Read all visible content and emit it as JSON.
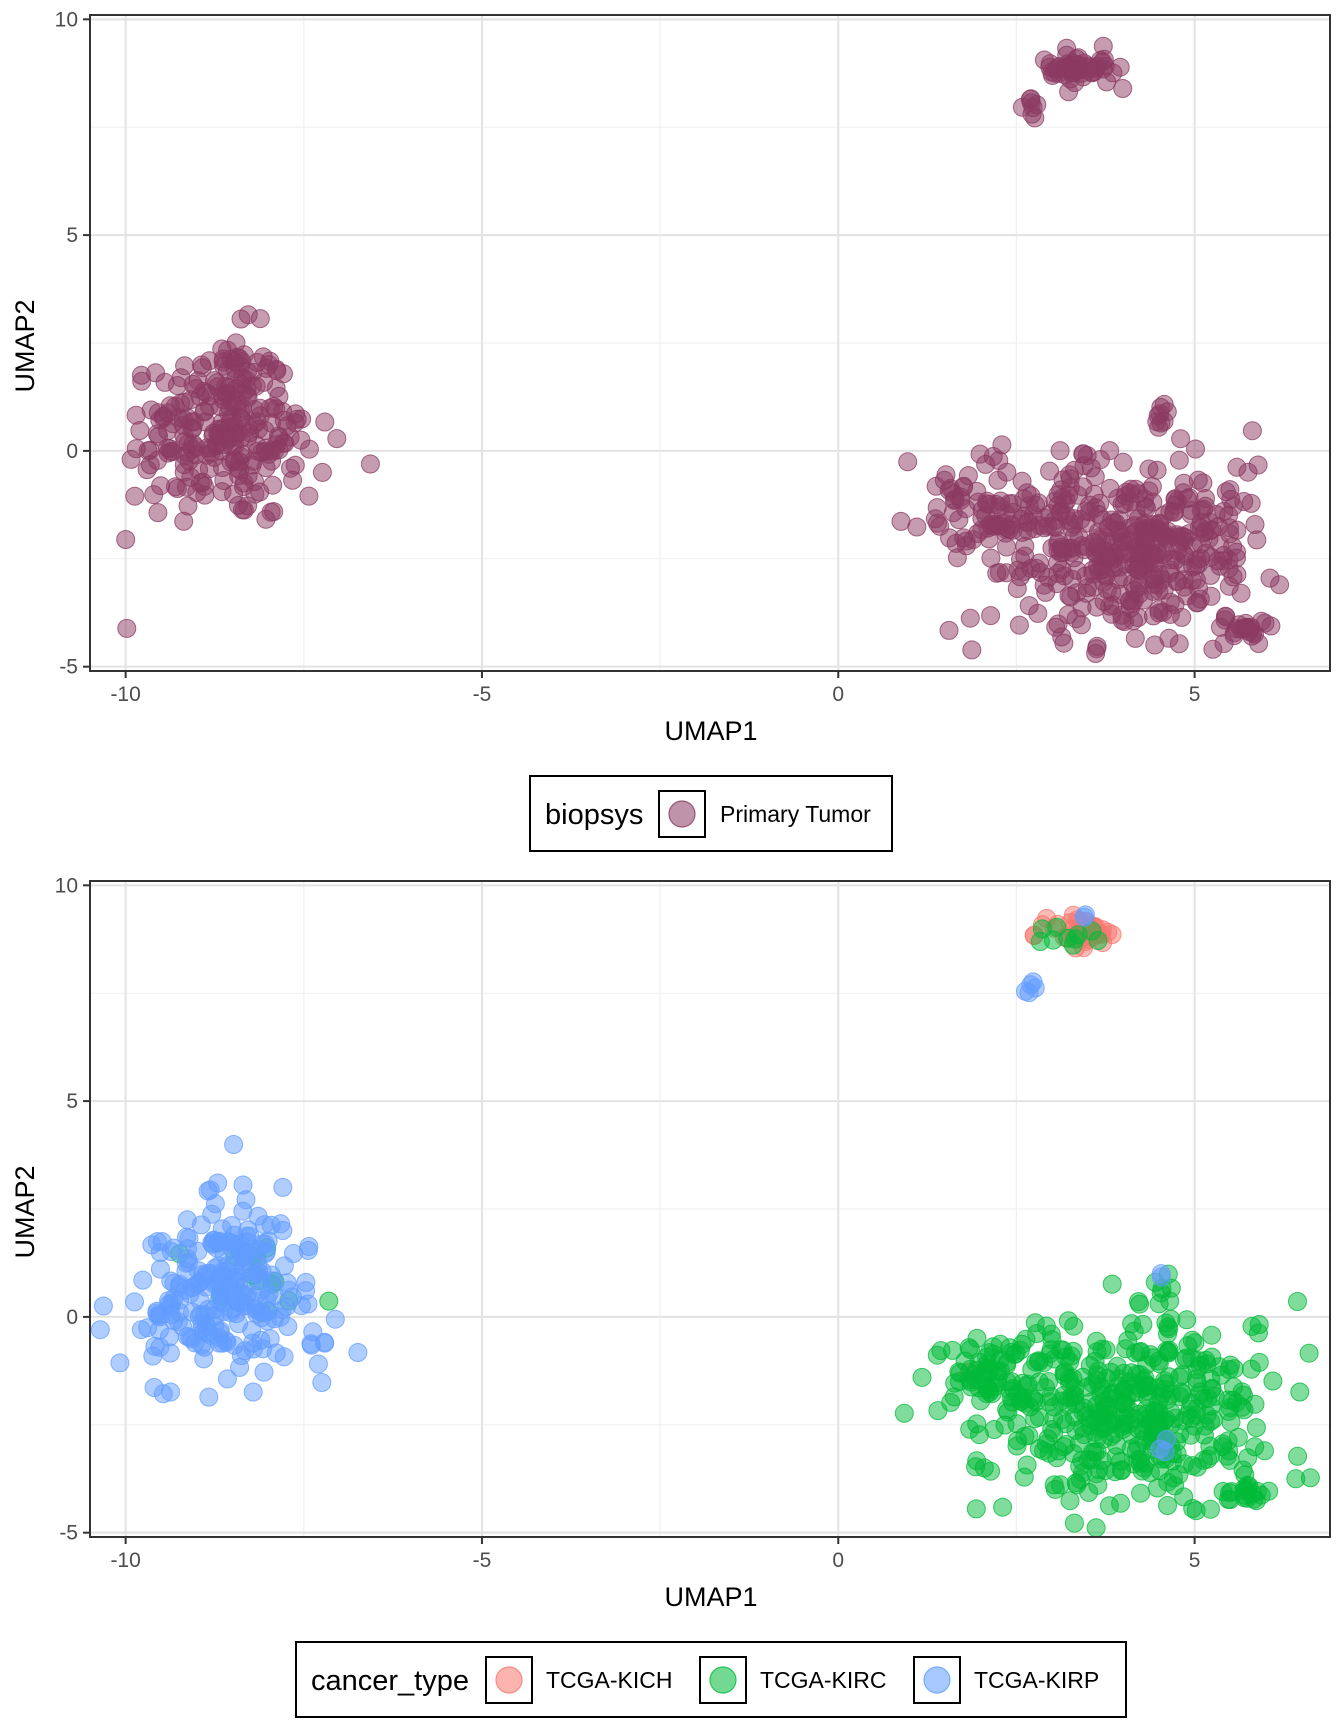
{
  "chart_data": [
    {
      "type": "scatter",
      "title": "",
      "xlabel": "UMAP1",
      "ylabel": "UMAP2",
      "xlim": [
        -10.5,
        6.9
      ],
      "ylim": [
        -5.1,
        10.1
      ],
      "xticks": [
        -10,
        -5,
        0,
        5
      ],
      "yticks": [
        -5,
        0,
        5,
        10
      ],
      "grid": true,
      "legend": {
        "position": "bottom",
        "title": "biopsys"
      },
      "series": [
        {
          "name": "Primary Tumor",
          "color": "#8B3A62",
          "clusters": [
            {
              "cx": -8.6,
              "cy": 0.5,
              "count": 260,
              "rx": 1.3,
              "ry": 2.0,
              "shape": "triangle"
            },
            {
              "cx": 4.1,
              "cy": -2.2,
              "count": 430,
              "rx": 1.8,
              "ry": 1.9,
              "shape": "blob"
            },
            {
              "cx": 2.1,
              "cy": -1.3,
              "count": 60,
              "rx": 0.8,
              "ry": 0.9,
              "shape": "blob"
            },
            {
              "cx": 3.4,
              "cy": 8.9,
              "count": 55,
              "rx": 0.5,
              "ry": 0.4,
              "shape": "blob"
            },
            {
              "cx": 2.7,
              "cy": 7.9,
              "count": 8,
              "rx": 0.1,
              "ry": 0.3,
              "shape": "blob"
            },
            {
              "cx": 5.7,
              "cy": -4.1,
              "count": 18,
              "rx": 0.3,
              "ry": 0.2,
              "shape": "blob"
            },
            {
              "cx": 4.55,
              "cy": 0.8,
              "count": 8,
              "rx": 0.1,
              "ry": 0.3,
              "shape": "blob"
            }
          ]
        }
      ]
    },
    {
      "type": "scatter",
      "title": "",
      "xlabel": "UMAP1",
      "ylabel": "UMAP2",
      "xlim": [
        -10.5,
        6.9
      ],
      "ylim": [
        -5.1,
        10.1
      ],
      "xticks": [
        -10,
        -5,
        0,
        5
      ],
      "yticks": [
        -5,
        0,
        5,
        10
      ],
      "grid": true,
      "legend": {
        "position": "bottom",
        "title": "cancer_type"
      },
      "series": [
        {
          "name": "TCGA-KICH",
          "color": "#F8766D",
          "clusters": [
            {
              "cx": 3.4,
              "cy": 8.95,
              "count": 40,
              "rx": 0.45,
              "ry": 0.35,
              "shape": "blob"
            },
            {
              "cx": 1.8,
              "cy": -1.3,
              "count": 1,
              "rx": 0.05,
              "ry": 0.05,
              "shape": "blob"
            }
          ]
        },
        {
          "name": "TCGA-KIRC",
          "color": "#00BA38",
          "clusters": [
            {
              "cx": 4.1,
              "cy": -2.2,
              "count": 420,
              "rx": 1.8,
              "ry": 1.9,
              "shape": "blob"
            },
            {
              "cx": 2.1,
              "cy": -1.3,
              "count": 55,
              "rx": 0.8,
              "ry": 0.9,
              "shape": "blob"
            },
            {
              "cx": 3.2,
              "cy": 8.8,
              "count": 10,
              "rx": 0.5,
              "ry": 0.3,
              "shape": "blob"
            },
            {
              "cx": -8.0,
              "cy": 0.8,
              "count": 14,
              "rx": 0.7,
              "ry": 1.0,
              "shape": "blob"
            },
            {
              "cx": 5.7,
              "cy": -4.1,
              "count": 18,
              "rx": 0.3,
              "ry": 0.2,
              "shape": "blob"
            },
            {
              "cx": 4.6,
              "cy": 0.6,
              "count": 5,
              "rx": 0.1,
              "ry": 0.25,
              "shape": "blob"
            }
          ]
        },
        {
          "name": "TCGA-KIRP",
          "color": "#619CFF",
          "clusters": [
            {
              "cx": -8.6,
              "cy": 0.5,
              "count": 250,
              "rx": 1.3,
              "ry": 2.0,
              "shape": "triangle"
            },
            {
              "cx": 2.7,
              "cy": 7.7,
              "count": 5,
              "rx": 0.1,
              "ry": 0.2,
              "shape": "blob"
            },
            {
              "cx": 3.5,
              "cy": 9.3,
              "count": 2,
              "rx": 0.1,
              "ry": 0.05,
              "shape": "blob"
            },
            {
              "cx": 4.5,
              "cy": 1.0,
              "count": 2,
              "rx": 0.05,
              "ry": 0.05,
              "shape": "blob"
            },
            {
              "cx": 4.6,
              "cy": -2.8,
              "count": 3,
              "rx": 0.2,
              "ry": 0.3,
              "shape": "blob"
            }
          ]
        }
      ]
    }
  ]
}
